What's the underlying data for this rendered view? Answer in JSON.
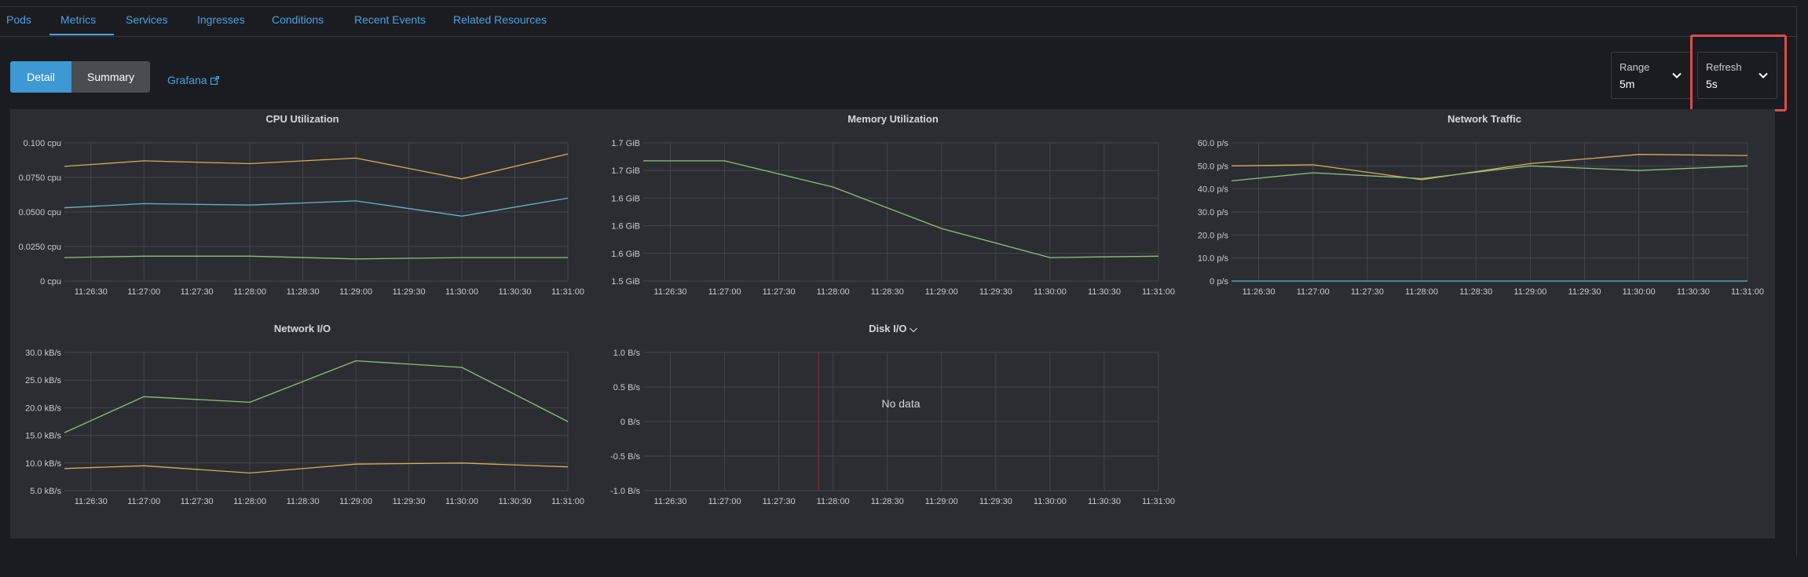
{
  "tabs": [
    {
      "label": "Pods"
    },
    {
      "label": "Metrics"
    },
    {
      "label": "Services"
    },
    {
      "label": "Ingresses"
    },
    {
      "label": "Conditions"
    },
    {
      "label": "Recent Events"
    },
    {
      "label": "Related Resources"
    }
  ],
  "view_toggle": {
    "detail": "Detail",
    "summary": "Summary"
  },
  "grafana_link": "Grafana",
  "range": {
    "label": "Range",
    "value": "5m"
  },
  "refresh": {
    "label": "Refresh",
    "value": "5s"
  },
  "colors": {
    "yellow": "#d8b04c",
    "teal": "#6ab3c9",
    "green": "#8fc27a",
    "red_marker": "#8b2a2a"
  },
  "time_ticks": [
    "11:26:30",
    "11:27:00",
    "11:27:30",
    "11:28:00",
    "11:28:30",
    "11:29:00",
    "11:29:30",
    "11:30:00",
    "11:30:30",
    "11:31:00"
  ],
  "chart_data": [
    {
      "type": "line",
      "title": "CPU Utilization",
      "y_ticks": [
        "0.100 cpu",
        "0.0750 cpu",
        "0.0500 cpu",
        "0.0250 cpu",
        "0 cpu"
      ],
      "ylim": [
        0,
        0.1
      ],
      "x": [
        "11:26:15",
        "11:27:00",
        "11:28:00",
        "11:29:00",
        "11:30:00",
        "11:31:00"
      ],
      "series": [
        {
          "color": "yellow",
          "values": [
            0.083,
            0.087,
            0.085,
            0.089,
            0.074,
            0.092
          ]
        },
        {
          "color": "teal",
          "values": [
            0.053,
            0.056,
            0.055,
            0.058,
            0.047,
            0.06
          ]
        },
        {
          "color": "green",
          "values": [
            0.017,
            0.018,
            0.018,
            0.016,
            0.017,
            0.017
          ]
        }
      ]
    },
    {
      "type": "line",
      "title": "Memory Utilization",
      "y_ticks": [
        "1.7 GiB",
        "1.7 GiB",
        "1.6 GiB",
        "1.6 GiB",
        "1.6 GiB",
        "1.5 GiB"
      ],
      "ylim": [
        0,
        5
      ],
      "x": [
        "11:26:15",
        "11:27:00",
        "11:28:00",
        "11:29:00",
        "11:30:00",
        "11:31:00"
      ],
      "series": [
        {
          "color": "green",
          "values": [
            4.35,
            4.35,
            3.4,
            1.9,
            0.85,
            0.9
          ]
        }
      ]
    },
    {
      "type": "line",
      "title": "Network Traffic",
      "y_ticks": [
        "60.0 p/s",
        "50.0 p/s",
        "40.0 p/s",
        "30.0 p/s",
        "20.0 p/s",
        "10.0 p/s",
        "0 p/s"
      ],
      "ylim": [
        0,
        60
      ],
      "x": [
        "11:26:15",
        "11:27:00",
        "11:28:00",
        "11:29:00",
        "11:30:00",
        "11:31:00"
      ],
      "series": [
        {
          "color": "yellow",
          "values": [
            50.0,
            50.5,
            44.0,
            51.0,
            55.0,
            54.5
          ]
        },
        {
          "color": "green",
          "values": [
            43.5,
            47.0,
            44.5,
            50.0,
            48.0,
            50.0
          ]
        },
        {
          "color": "teal",
          "values": [
            0,
            0,
            0,
            0,
            0,
            0
          ]
        }
      ]
    },
    {
      "type": "line",
      "title": "Network I/O",
      "y_ticks": [
        "30.0 kB/s",
        "25.0 kB/s",
        "20.0 kB/s",
        "15.0 kB/s",
        "10.0 kB/s",
        "5.0 kB/s"
      ],
      "ylim": [
        5,
        30
      ],
      "x": [
        "11:26:15",
        "11:27:00",
        "11:28:00",
        "11:29:00",
        "11:30:00",
        "11:31:00"
      ],
      "series": [
        {
          "color": "green",
          "values": [
            15.5,
            22.0,
            21.0,
            28.5,
            27.3,
            17.5
          ]
        },
        {
          "color": "yellow",
          "values": [
            9.0,
            9.5,
            8.2,
            9.8,
            10.0,
            9.3
          ]
        }
      ]
    },
    {
      "type": "line",
      "title": "Disk I/O",
      "title_suffix": "⌵",
      "y_ticks": [
        "1.0 B/s",
        "0.5 B/s",
        "0 B/s",
        "-0.5 B/s",
        "-1.0 B/s"
      ],
      "ylim": [
        -1,
        1
      ],
      "no_data": "No data",
      "series": []
    }
  ]
}
